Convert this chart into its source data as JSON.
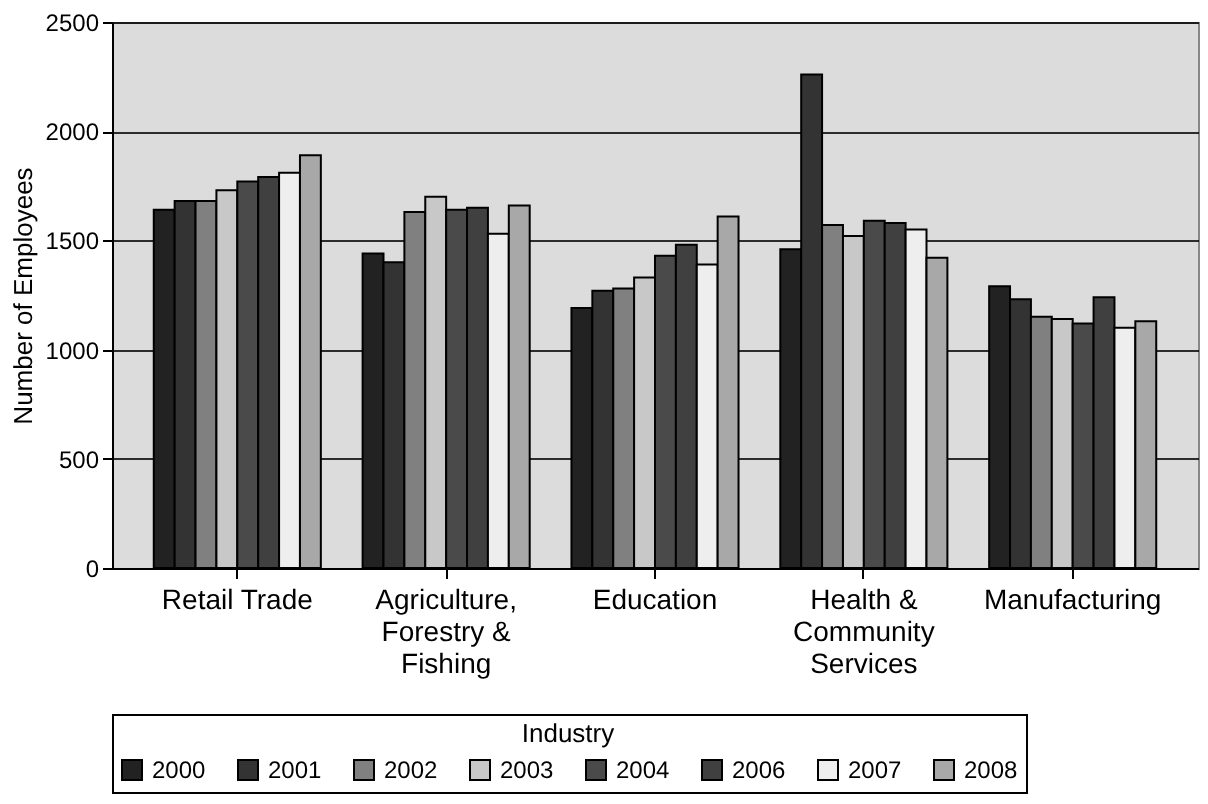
{
  "chart_data": {
    "type": "bar",
    "ylabel": "Number of Employees",
    "legend_title": "Industry",
    "categories": [
      "Retail Trade",
      "Agriculture,\nForestry &\nFishing",
      "Education",
      "Health &\nCommunity\nServices",
      "Manufacturing"
    ],
    "series": [
      {
        "name": "2000",
        "color": "#222222",
        "values": [
          1640,
          1440,
          1190,
          1460,
          1290
        ]
      },
      {
        "name": "2001",
        "color": "#333333",
        "values": [
          1680,
          1400,
          1270,
          2260,
          1230
        ]
      },
      {
        "name": "2002",
        "color": "#808080",
        "values": [
          1680,
          1630,
          1280,
          1570,
          1150
        ]
      },
      {
        "name": "2003",
        "color": "#c8c8c8",
        "values": [
          1730,
          1700,
          1330,
          1520,
          1140
        ]
      },
      {
        "name": "2004",
        "color": "#4a4a4a",
        "values": [
          1770,
          1640,
          1430,
          1590,
          1120
        ]
      },
      {
        "name": "2006",
        "color": "#404040",
        "values": [
          1790,
          1650,
          1480,
          1580,
          1240
        ]
      },
      {
        "name": "2007",
        "color": "#eeeeee",
        "values": [
          1810,
          1530,
          1390,
          1550,
          1100
        ]
      },
      {
        "name": "2008",
        "color": "#a8a8a8",
        "values": [
          1890,
          1660,
          1610,
          1420,
          1130
        ]
      }
    ],
    "ylim": [
      0,
      2500
    ],
    "yticks": [
      0,
      500,
      1000,
      1500,
      2000,
      2500
    ],
    "grid": "y",
    "legend": "bottom"
  }
}
